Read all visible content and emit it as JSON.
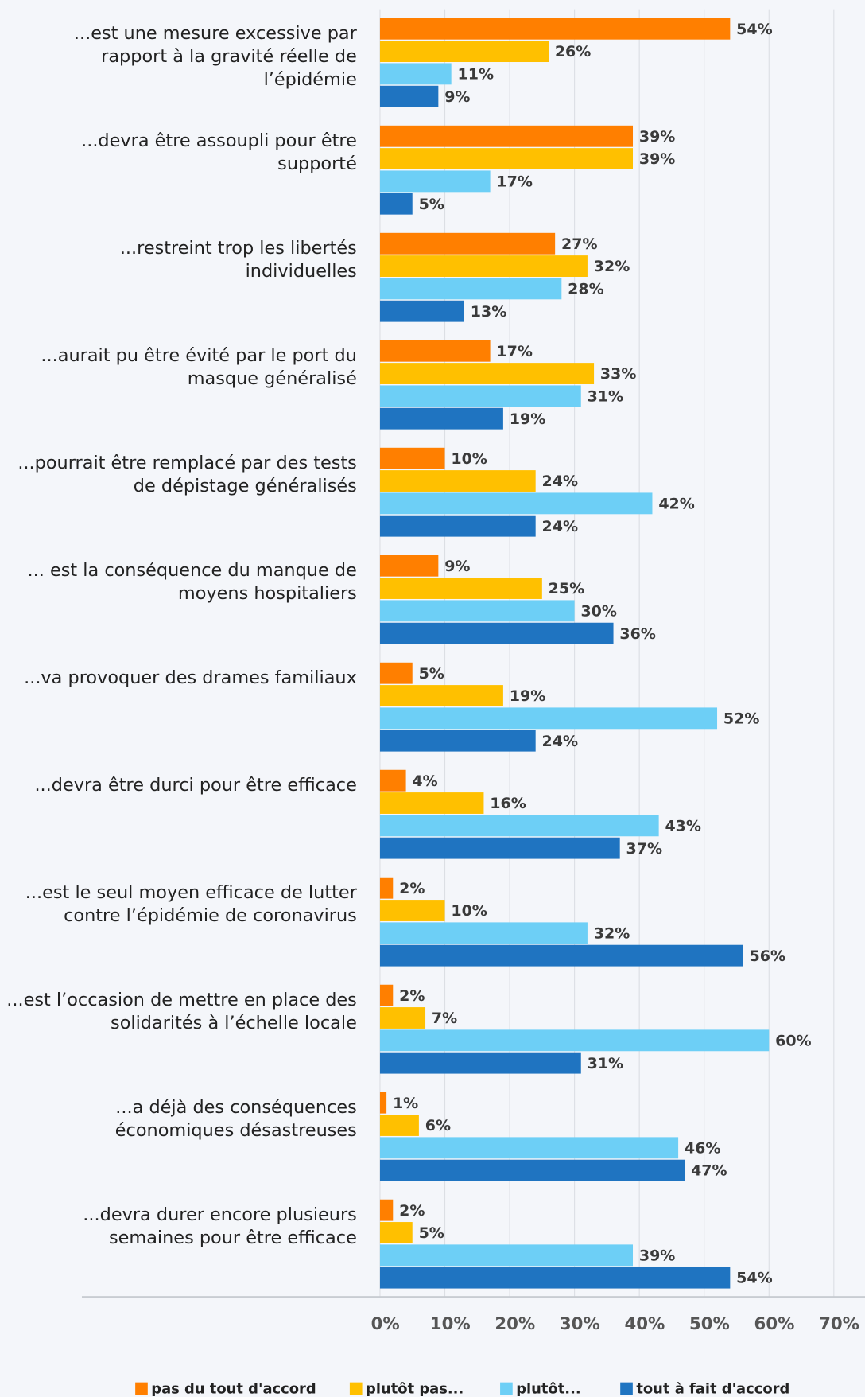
{
  "chart_data": {
    "type": "bar",
    "orientation": "horizontal",
    "categories": [
      "...est une mesure excessive par\nrapport  à la gravité réelle de\nl’épidémie",
      "...devra être assoupli pour être\nsupporté",
      "...restreint trop les libertés\nindividuelles",
      "...aurait pu être évité par le port du\nmasque généralisé",
      "...pourrait être remplacé par des tests\nde dépistage généralisés",
      "... est la conséquence du manque de\nmoyens hospitaliers",
      "...va provoquer des drames familiaux",
      "...devra être durci pour être efficace",
      "...est le seul moyen efficace de lutter\ncontre l’épidémie de coronavirus",
      "...est l’occasion de mettre en place des\nsolidarités à l’échelle locale",
      "...a déjà des conséquences\néconomiques désastreuses",
      "...devra durer encore plusieurs\nsemaines pour être efficace"
    ],
    "series": [
      {
        "name": "pas du tout d'accord",
        "color": "#ff7f00",
        "values": [
          54,
          39,
          27,
          17,
          10,
          9,
          5,
          4,
          2,
          2,
          1,
          2
        ],
        "value_labels": [
          "54%",
          "39%",
          "27%",
          "17%",
          "10%",
          "9%",
          "5%",
          "4%",
          "2%",
          "2%",
          "1%",
          "2%"
        ]
      },
      {
        "name": "plutôt pas...",
        "color": "#ffc000",
        "values": [
          26,
          39,
          32,
          33,
          24,
          25,
          19,
          16,
          10,
          7,
          6,
          5
        ],
        "value_labels": [
          "26%",
          "39%",
          "32%",
          "33%",
          "24%",
          "25%",
          "19%",
          "16%",
          "10%",
          "7%",
          "6%",
          "5%"
        ]
      },
      {
        "name": "plutôt...",
        "color": "#6dcff6",
        "values": [
          11,
          17,
          28,
          31,
          42,
          30,
          52,
          43,
          32,
          60,
          46,
          39
        ],
        "value_labels": [
          "11%",
          "17%",
          "28%",
          "31%",
          "42%",
          "30%",
          "52%",
          "43%",
          "32%",
          "60%",
          "46%",
          "39%"
        ]
      },
      {
        "name": "tout à fait d'accord",
        "color": "#1f74c1",
        "values": [
          9,
          5,
          13,
          19,
          24,
          36,
          24,
          37,
          56,
          31,
          47,
          54
        ],
        "value_labels": [
          "9%",
          "5%",
          "13%",
          "19%",
          "24%",
          "36%",
          "24%",
          "37%",
          "56%",
          "31%",
          "47%",
          "54%"
        ]
      }
    ],
    "xlim": [
      0,
      70
    ],
    "xticks": [
      {
        "value": 0,
        "label": "0%"
      },
      {
        "value": 10,
        "label": "10%"
      },
      {
        "value": 20,
        "label": "20%"
      },
      {
        "value": 30,
        "label": "30%"
      },
      {
        "value": 40,
        "label": "40%"
      },
      {
        "value": 50,
        "label": "50%"
      },
      {
        "value": 60,
        "label": "60%"
      },
      {
        "value": 70,
        "label": "70%"
      }
    ],
    "grid": true,
    "legend": "bottom"
  }
}
